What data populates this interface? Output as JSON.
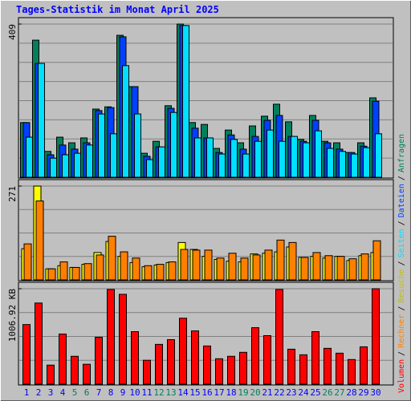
{
  "chart_data": [
    {
      "type": "bar",
      "title": "Tages-Statistik im Monat April 2025",
      "ylim": [
        0,
        409
      ],
      "yticks": [
        409
      ],
      "series": [
        {
          "name": "Anfragen",
          "color": "#00805c",
          "values": [
            146,
            366,
            69,
            107,
            92,
            105,
            182,
            188,
            379,
            242,
            64,
            96,
            191,
            409,
            146,
            141,
            77,
            126,
            92,
            137,
            163,
            195,
            148,
            101,
            165,
            96,
            92,
            66,
            92,
            212
          ]
        },
        {
          "name": "Dateien",
          "color": "#0040ff",
          "values": [
            146,
            304,
            60,
            86,
            75,
            92,
            178,
            186,
            375,
            242,
            56,
            81,
            184,
            405,
            131,
            105,
            66,
            113,
            75,
            109,
            152,
            165,
            109,
            96,
            152,
            92,
            75,
            66,
            83,
            203
          ]
        },
        {
          "name": "Seiten",
          "color": "#00e0ff",
          "values": [
            107,
            304,
            51,
            60,
            64,
            86,
            169,
            116,
            298,
            169,
            47,
            81,
            173,
            405,
            105,
            105,
            62,
            101,
            62,
            96,
            126,
            96,
            109,
            92,
            124,
            77,
            69,
            62,
            79,
            116
          ]
        }
      ]
    },
    {
      "type": "bar",
      "ylim": [
        0,
        271
      ],
      "yticks": [
        271
      ],
      "series": [
        {
          "name": "Besuche",
          "color": "#ffff00",
          "values": [
            90,
            271,
            32,
            41,
            36,
            45,
            79,
            111,
            68,
            50,
            38,
            43,
            50,
            108,
            88,
            68,
            59,
            54,
            52,
            75,
            77,
            81,
            95,
            65,
            68,
            63,
            68,
            56,
            70,
            79
          ]
        },
        {
          "name": "Rechner",
          "color": "#ff8000",
          "values": [
            104,
            228,
            32,
            52,
            36,
            47,
            72,
            126,
            81,
            63,
            41,
            45,
            52,
            88,
            86,
            86,
            63,
            77,
            63,
            72,
            86,
            115,
            108,
            65,
            79,
            70,
            68,
            61,
            75,
            113
          ]
        }
      ]
    },
    {
      "type": "bar",
      "ylim": [
        0,
        1006.92
      ],
      "yticks": [
        {
          "value": 1006.92,
          "label": "1006.92 KB"
        }
      ],
      "categories": [
        "1",
        "2",
        "3",
        "4",
        "5",
        "6",
        "7",
        "8",
        "9",
        "10",
        "11",
        "12",
        "13",
        "14",
        "15",
        "16",
        "17",
        "18",
        "19",
        "20",
        "21",
        "22",
        "23",
        "24",
        "25",
        "26",
        "27",
        "28",
        "29",
        "30"
      ],
      "category_colors": [
        "#0000ff",
        "#0000ff",
        "#0000ff",
        "#0000ff",
        "#00805c",
        "#00805c",
        "#0000ff",
        "#0000ff",
        "#0000ff",
        "#0000ff",
        "#0000ff",
        "#00805c",
        "#00805c",
        "#0000ff",
        "#0000ff",
        "#0000ff",
        "#0000ff",
        "#0000ff",
        "#00805c",
        "#00805c",
        "#0000ff",
        "#0000ff",
        "#0000ff",
        "#0000ff",
        "#0000ff",
        "#00805c",
        "#00805c",
        "#0000ff",
        "#0000ff",
        "#0000ff"
      ],
      "series": [
        {
          "name": "Volumen",
          "color": "#ff0000",
          "values": [
            629,
            856,
            201,
            529,
            294,
            210,
            495,
            999,
            948,
            554,
            252,
            420,
            470,
            696,
            562,
            403,
            268,
            294,
            336,
            596,
            512,
            999,
            369,
            310,
            554,
            378,
            327,
            260,
            394,
            1006.92
          ]
        }
      ]
    }
  ],
  "legend_separator": "/"
}
